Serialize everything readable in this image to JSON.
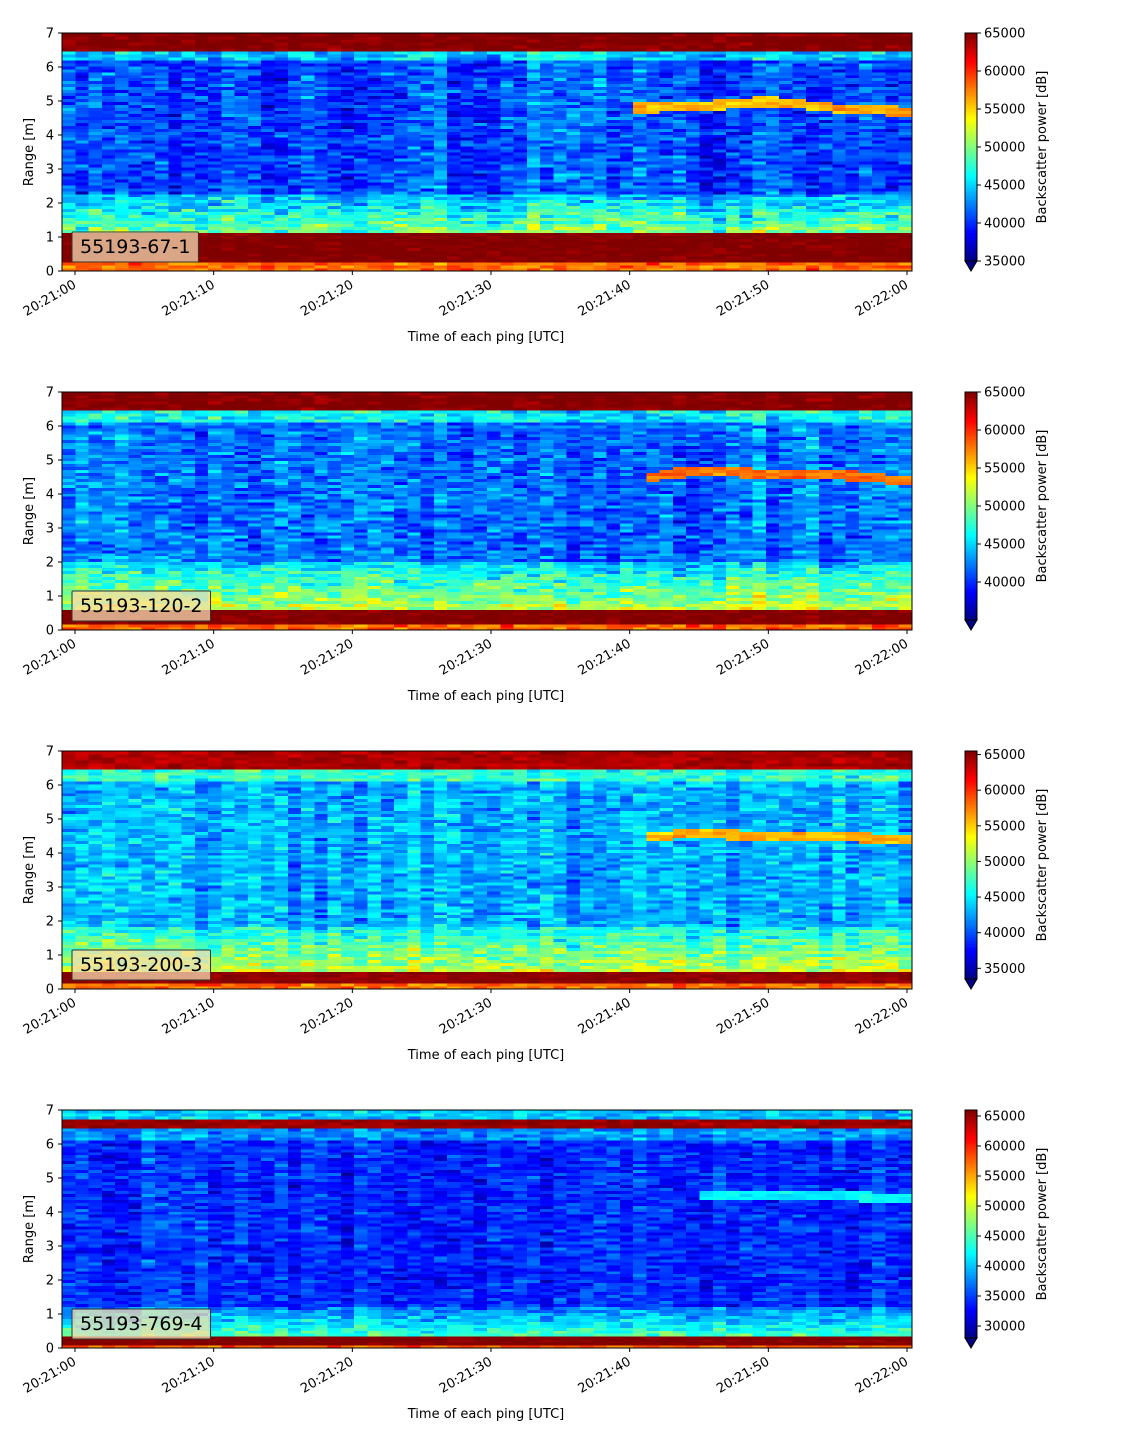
{
  "chart_data": [
    {
      "type": "heatmap",
      "panel_label": "55193-67-1",
      "xlabel": "Time of each ping [UTC]",
      "ylabel": "Range [m]",
      "xticks": [
        "20:21:00",
        "20:21:10",
        "20:21:20",
        "20:21:30",
        "20:21:40",
        "20:21:50",
        "20:22:00"
      ],
      "xlim": [
        "20:21:00",
        "20:22:00"
      ],
      "ylim": [
        0,
        7
      ],
      "yticks": [
        0,
        1,
        2,
        3,
        4,
        5,
        6,
        7
      ],
      "colorbar": {
        "label": "Backscatter power [dB]",
        "range": [
          35000,
          65000
        ],
        "ticks": [
          35000,
          40000,
          45000,
          50000,
          55000,
          60000,
          65000
        ],
        "extend": "min",
        "colormap": "jet"
      },
      "features": {
        "bottom_band": {
          "range_m": [
            0.25,
            1.15
          ],
          "level": 65000
        },
        "top_band": {
          "range_m": [
            6.5,
            7.0
          ],
          "level": 65000
        },
        "near_bottom_layer": {
          "range_m": [
            1.15,
            2.3
          ],
          "level": 50000
        },
        "background_level": 41000,
        "target_track": {
          "time": [
            "20:21:40",
            "20:21:45",
            "20:21:50",
            "20:21:55",
            "20:22:00"
          ],
          "range_m": [
            4.8,
            4.85,
            5.0,
            4.8,
            4.7
          ],
          "level": 56000
        }
      }
    },
    {
      "type": "heatmap",
      "panel_label": "55193-120-2",
      "xlabel": "Time of each ping [UTC]",
      "ylabel": "Range [m]",
      "xticks": [
        "20:21:00",
        "20:21:10",
        "20:21:20",
        "20:21:30",
        "20:21:40",
        "20:21:50",
        "20:22:00"
      ],
      "xlim": [
        "20:21:00",
        "20:22:00"
      ],
      "ylim": [
        0,
        7
      ],
      "yticks": [
        0,
        1,
        2,
        3,
        4,
        5,
        6,
        7
      ],
      "colorbar": {
        "label": "Backscatter power [dB]",
        "range": [
          35000,
          65000
        ],
        "ticks": [
          40000,
          45000,
          50000,
          55000,
          60000,
          65000
        ],
        "extend": "min",
        "colormap": "jet"
      },
      "features": {
        "bottom_band": {
          "range_m": [
            0.15,
            0.6
          ],
          "level": 65000
        },
        "top_band": {
          "range_m": [
            6.45,
            7.0
          ],
          "level": 65000
        },
        "near_bottom_layer": {
          "range_m": [
            0.6,
            2.0
          ],
          "level": 52000
        },
        "background_level": 42000,
        "target_track": {
          "time": [
            "20:21:41",
            "20:21:45",
            "20:21:50",
            "20:21:55",
            "20:22:00"
          ],
          "range_m": [
            4.5,
            4.7,
            4.6,
            4.6,
            4.4
          ],
          "level": 58000
        }
      }
    },
    {
      "type": "heatmap",
      "panel_label": "55193-200-3",
      "xlabel": "Time of each ping [UTC]",
      "ylabel": "Range [m]",
      "xticks": [
        "20:21:00",
        "20:21:10",
        "20:21:20",
        "20:21:30",
        "20:21:40",
        "20:21:50",
        "20:22:00"
      ],
      "xlim": [
        "20:21:00",
        "20:22:00"
      ],
      "ylim": [
        0,
        7
      ],
      "yticks": [
        0,
        1,
        2,
        3,
        4,
        5,
        6,
        7
      ],
      "colorbar": {
        "label": "Backscatter power [dB]",
        "range": [
          33500,
          65500
        ],
        "ticks": [
          35000,
          40000,
          45000,
          50000,
          55000,
          60000,
          65000
        ],
        "extend": "min",
        "colormap": "jet"
      },
      "features": {
        "bottom_band": {
          "range_m": [
            0.15,
            0.5
          ],
          "level": 65000
        },
        "top_band": {
          "range_m": [
            6.45,
            7.0
          ],
          "level": 64000
        },
        "near_bottom_layer": {
          "range_m": [
            0.5,
            1.8
          ],
          "level": 52000
        },
        "background_level": 43000,
        "target_track": {
          "time": [
            "20:21:41",
            "20:21:45",
            "20:21:50",
            "20:21:55",
            "20:22:00"
          ],
          "range_m": [
            4.5,
            4.6,
            4.5,
            4.5,
            4.4
          ],
          "level": 56000
        }
      }
    },
    {
      "type": "heatmap",
      "panel_label": "55193-769-4",
      "xlabel": "Time of each ping [UTC]",
      "ylabel": "Range [m]",
      "xticks": [
        "20:21:00",
        "20:21:10",
        "20:21:20",
        "20:21:30",
        "20:21:40",
        "20:21:50",
        "20:22:00"
      ],
      "xlim": [
        "20:21:00",
        "20:22:00"
      ],
      "ylim": [
        0,
        7
      ],
      "yticks": [
        0,
        1,
        2,
        3,
        4,
        5,
        6,
        7
      ],
      "colorbar": {
        "label": "Backscatter power [dB]",
        "range": [
          28000,
          66000
        ],
        "ticks": [
          30000,
          35000,
          40000,
          45000,
          50000,
          55000,
          60000,
          65000
        ],
        "extend": "min",
        "colormap": "jet"
      },
      "features": {
        "bottom_band": {
          "range_m": [
            0.1,
            0.35
          ],
          "level": 66000
        },
        "top_band": {
          "range_m": [
            6.45,
            6.7
          ],
          "level": 65000
        },
        "near_bottom_layer": {
          "range_m": [
            0.35,
            1.2
          ],
          "level": 45000
        },
        "background_level": 34000,
        "target_track": {
          "time": [
            "20:21:45",
            "20:21:50",
            "20:21:55",
            "20:22:00"
          ],
          "range_m": [
            4.5,
            4.5,
            4.5,
            4.4
          ],
          "level": 42000
        }
      }
    }
  ]
}
